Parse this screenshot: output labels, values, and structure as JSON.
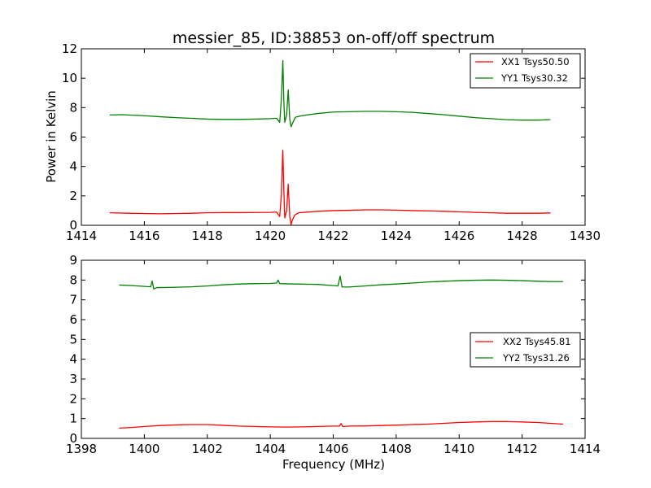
{
  "chart_data": [
    {
      "type": "line",
      "title": "messier_85, ID:38853 on-off/off spectrum",
      "xlabel": "",
      "ylabel": "Power in Kelvin",
      "xlim": [
        1414,
        1430
      ],
      "ylim": [
        0,
        12
      ],
      "xticks": [
        1414,
        1416,
        1418,
        1420,
        1422,
        1424,
        1426,
        1428,
        1430
      ],
      "yticks": [
        0,
        2,
        4,
        6,
        8,
        10,
        12
      ],
      "legend": "top-right",
      "grid": false,
      "series": [
        {
          "name": "XX1 Tsys50.50",
          "color": "#ff0000",
          "points": [
            [
              1414.9,
              0.85
            ],
            [
              1415.5,
              0.82
            ],
            [
              1416.0,
              0.8
            ],
            [
              1416.5,
              0.78
            ],
            [
              1417.0,
              0.8
            ],
            [
              1417.5,
              0.82
            ],
            [
              1418.0,
              0.85
            ],
            [
              1418.5,
              0.86
            ],
            [
              1419.0,
              0.86
            ],
            [
              1419.5,
              0.87
            ],
            [
              1420.0,
              0.88
            ],
            [
              1420.2,
              0.9
            ],
            [
              1420.3,
              0.6
            ],
            [
              1420.35,
              2.0
            ],
            [
              1420.4,
              5.1
            ],
            [
              1420.43,
              2.5
            ],
            [
              1420.46,
              0.5
            ],
            [
              1420.52,
              1.0
            ],
            [
              1420.57,
              2.8
            ],
            [
              1420.62,
              0.6
            ],
            [
              1420.66,
              0.05
            ],
            [
              1420.7,
              0.35
            ],
            [
              1420.78,
              0.7
            ],
            [
              1420.9,
              0.85
            ],
            [
              1421.5,
              0.95
            ],
            [
              1422.0,
              1.0
            ],
            [
              1422.5,
              1.02
            ],
            [
              1423.0,
              1.05
            ],
            [
              1423.5,
              1.05
            ],
            [
              1424.0,
              1.03
            ],
            [
              1424.5,
              1.0
            ],
            [
              1425.0,
              0.98
            ],
            [
              1425.5,
              0.95
            ],
            [
              1426.0,
              0.92
            ],
            [
              1426.5,
              0.88
            ],
            [
              1427.0,
              0.85
            ],
            [
              1427.5,
              0.82
            ],
            [
              1428.0,
              0.82
            ],
            [
              1428.5,
              0.82
            ],
            [
              1428.9,
              0.84
            ]
          ]
        },
        {
          "name": "YY1 Tsys30.32",
          "color": "#008000",
          "points": [
            [
              1414.9,
              7.5
            ],
            [
              1415.3,
              7.52
            ],
            [
              1416.0,
              7.45
            ],
            [
              1416.5,
              7.38
            ],
            [
              1417.0,
              7.32
            ],
            [
              1417.5,
              7.27
            ],
            [
              1418.0,
              7.22
            ],
            [
              1418.5,
              7.2
            ],
            [
              1419.0,
              7.2
            ],
            [
              1419.5,
              7.22
            ],
            [
              1420.0,
              7.25
            ],
            [
              1420.2,
              7.28
            ],
            [
              1420.3,
              7.0
            ],
            [
              1420.35,
              8.5
            ],
            [
              1420.4,
              11.2
            ],
            [
              1420.43,
              8.5
            ],
            [
              1420.46,
              7.0
            ],
            [
              1420.52,
              7.5
            ],
            [
              1420.57,
              9.2
            ],
            [
              1420.62,
              7.2
            ],
            [
              1420.66,
              6.7
            ],
            [
              1420.72,
              7.0
            ],
            [
              1420.8,
              7.35
            ],
            [
              1421.0,
              7.45
            ],
            [
              1421.5,
              7.6
            ],
            [
              1422.0,
              7.7
            ],
            [
              1422.5,
              7.72
            ],
            [
              1423.0,
              7.75
            ],
            [
              1423.5,
              7.75
            ],
            [
              1424.0,
              7.72
            ],
            [
              1424.5,
              7.68
            ],
            [
              1425.0,
              7.6
            ],
            [
              1425.5,
              7.52
            ],
            [
              1426.0,
              7.42
            ],
            [
              1426.5,
              7.32
            ],
            [
              1427.0,
              7.25
            ],
            [
              1427.5,
              7.18
            ],
            [
              1428.0,
              7.15
            ],
            [
              1428.5,
              7.15
            ],
            [
              1428.9,
              7.18
            ]
          ]
        }
      ]
    },
    {
      "type": "line",
      "title": "",
      "xlabel": "Frequency (MHz)",
      "ylabel": "",
      "xlim": [
        1398,
        1414
      ],
      "ylim": [
        0,
        9
      ],
      "xticks": [
        1398,
        1400,
        1402,
        1404,
        1406,
        1408,
        1410,
        1412,
        1414
      ],
      "yticks": [
        0,
        1,
        2,
        3,
        4,
        5,
        6,
        7,
        8,
        9
      ],
      "legend": "center-right",
      "grid": false,
      "series": [
        {
          "name": "XX2 Tsys45.81",
          "color": "#ff0000",
          "points": [
            [
              1399.2,
              0.52
            ],
            [
              1399.6,
              0.55
            ],
            [
              1400.0,
              0.6
            ],
            [
              1400.5,
              0.65
            ],
            [
              1401.0,
              0.68
            ],
            [
              1401.5,
              0.7
            ],
            [
              1402.0,
              0.7
            ],
            [
              1402.5,
              0.66
            ],
            [
              1403.0,
              0.62
            ],
            [
              1403.5,
              0.6
            ],
            [
              1404.0,
              0.58
            ],
            [
              1404.5,
              0.57
            ],
            [
              1405.0,
              0.58
            ],
            [
              1405.5,
              0.6
            ],
            [
              1406.0,
              0.62
            ],
            [
              1406.2,
              0.62
            ],
            [
              1406.25,
              0.75
            ],
            [
              1406.3,
              0.6
            ],
            [
              1406.5,
              0.62
            ],
            [
              1407.0,
              0.63
            ],
            [
              1407.5,
              0.65
            ],
            [
              1408.0,
              0.67
            ],
            [
              1408.5,
              0.7
            ],
            [
              1409.0,
              0.72
            ],
            [
              1409.5,
              0.76
            ],
            [
              1410.0,
              0.8
            ],
            [
              1410.5,
              0.83
            ],
            [
              1411.0,
              0.85
            ],
            [
              1411.5,
              0.85
            ],
            [
              1412.0,
              0.83
            ],
            [
              1412.5,
              0.8
            ],
            [
              1413.0,
              0.75
            ],
            [
              1413.3,
              0.72
            ]
          ]
        },
        {
          "name": "YY2 Tsys31.26",
          "color": "#008000",
          "points": [
            [
              1399.2,
              7.75
            ],
            [
              1399.6,
              7.72
            ],
            [
              1400.0,
              7.68
            ],
            [
              1400.2,
              7.66
            ],
            [
              1400.25,
              7.95
            ],
            [
              1400.3,
              7.55
            ],
            [
              1400.4,
              7.62
            ],
            [
              1400.8,
              7.63
            ],
            [
              1401.5,
              7.66
            ],
            [
              1402.0,
              7.7
            ],
            [
              1402.5,
              7.76
            ],
            [
              1403.0,
              7.8
            ],
            [
              1403.5,
              7.82
            ],
            [
              1404.0,
              7.83
            ],
            [
              1404.2,
              7.85
            ],
            [
              1404.25,
              8.0
            ],
            [
              1404.3,
              7.82
            ],
            [
              1404.8,
              7.8
            ],
            [
              1405.5,
              7.78
            ],
            [
              1406.0,
              7.72
            ],
            [
              1406.15,
              7.7
            ],
            [
              1406.22,
              8.2
            ],
            [
              1406.28,
              7.65
            ],
            [
              1406.5,
              7.65
            ],
            [
              1407.0,
              7.7
            ],
            [
              1407.5,
              7.76
            ],
            [
              1408.0,
              7.8
            ],
            [
              1408.5,
              7.85
            ],
            [
              1409.0,
              7.9
            ],
            [
              1409.5,
              7.94
            ],
            [
              1410.0,
              7.97
            ],
            [
              1410.5,
              7.99
            ],
            [
              1411.0,
              8.0
            ],
            [
              1411.5,
              7.99
            ],
            [
              1412.0,
              7.97
            ],
            [
              1412.5,
              7.94
            ],
            [
              1413.0,
              7.92
            ],
            [
              1413.3,
              7.92
            ]
          ]
        }
      ]
    }
  ]
}
